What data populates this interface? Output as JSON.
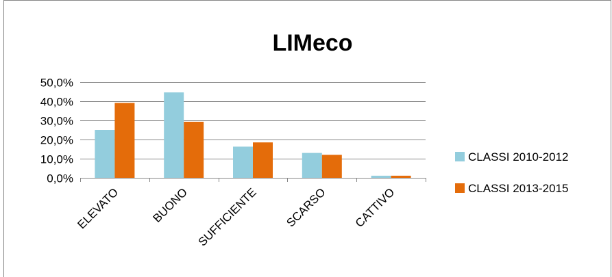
{
  "chart_data": {
    "type": "bar",
    "title": "LIMeco",
    "xlabel": "",
    "ylabel": "",
    "categories": [
      "ELEVATO",
      "BUONO",
      "SUFFICIENTE",
      "SCARSO",
      "CATTIVO"
    ],
    "series": [
      {
        "name": "CLASSI 2010-2012",
        "color": "#93cddd",
        "values": [
          25.0,
          44.6,
          16.3,
          13.0,
          1.1
        ]
      },
      {
        "name": "CLASSI 2013-2015",
        "color": "#e46c0a",
        "values": [
          39.1,
          29.3,
          18.5,
          12.0,
          1.1
        ]
      }
    ],
    "ylim": [
      0,
      50
    ],
    "yticks": [
      0,
      10,
      20,
      30,
      40,
      50
    ],
    "ytick_labels": [
      "0,0%",
      "10,0%",
      "20,0%",
      "30,0%",
      "40,0%",
      "50,0%"
    ],
    "grid": true,
    "legend_position": "right"
  },
  "colors": {
    "background": "#ffffff",
    "frame_border": "#868686",
    "gridline": "#868686",
    "axis": "#868686"
  }
}
